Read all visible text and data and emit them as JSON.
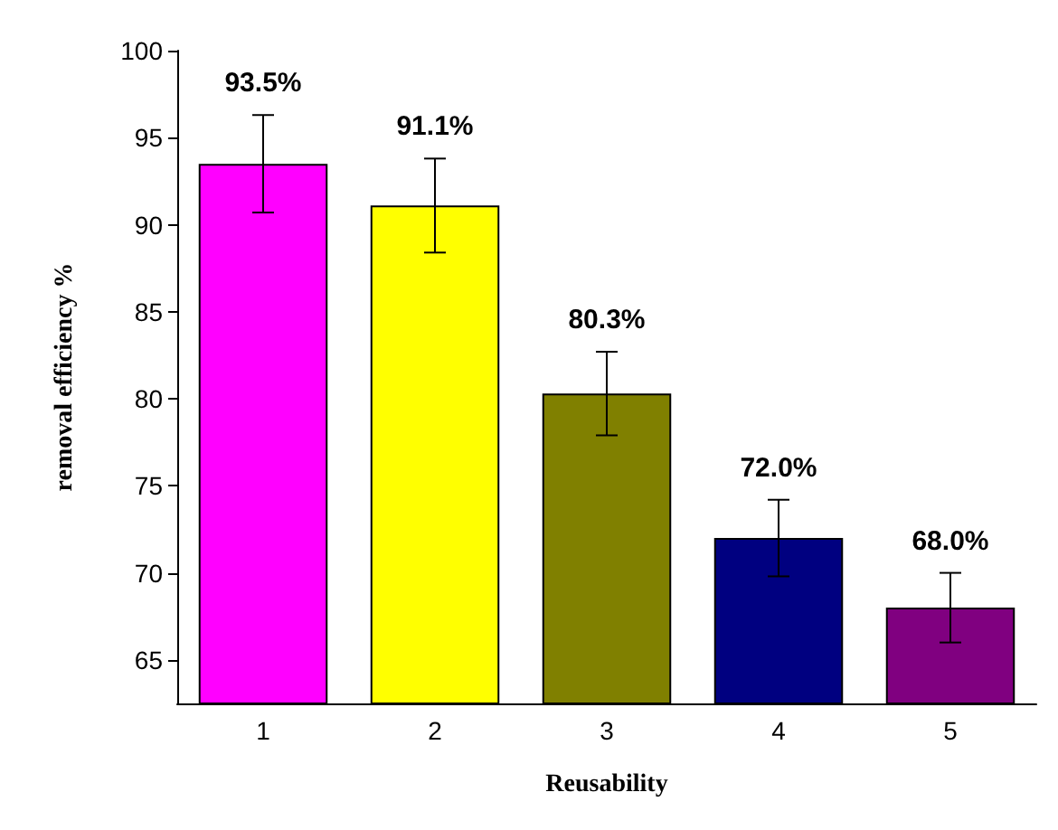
{
  "chart_data": {
    "type": "bar",
    "xlabel": "Reusability",
    "ylabel": "removal efficiency %",
    "categories": [
      "1",
      "2",
      "3",
      "4",
      "5"
    ],
    "values": [
      93.5,
      91.1,
      80.3,
      72.0,
      68.0
    ],
    "colors": [
      "#ff00ff",
      "#ffff00",
      "#808000",
      "#000080",
      "#800080"
    ],
    "errors": [
      2.8,
      2.7,
      2.4,
      2.2,
      2.0
    ],
    "value_labels": [
      "93.5%",
      "91.1%",
      "80.3%",
      "72.0%",
      "68.0%"
    ],
    "ylim": [
      62.5,
      100
    ],
    "yticks": [
      65,
      70,
      75,
      80,
      85,
      90,
      95,
      100
    ],
    "grid": false
  }
}
